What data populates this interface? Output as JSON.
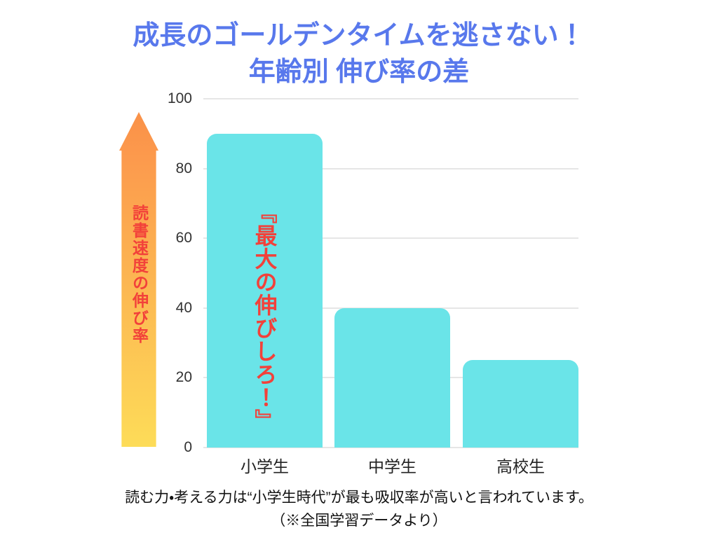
{
  "title": {
    "line1": "成長のゴールデンタイムを逃さない！",
    "line2": "年齢別 伸び率の差"
  },
  "chart_data": {
    "type": "bar",
    "title": "年齢別 伸び率の差",
    "categories": [
      "小学生",
      "中学生",
      "高校生"
    ],
    "values": [
      90,
      40,
      25
    ],
    "xlabel": "",
    "ylabel": "読書速度の伸び率",
    "ylim": [
      0,
      100
    ],
    "yticks": [
      0,
      20,
      40,
      60,
      80,
      100
    ],
    "grid": true,
    "legend": false,
    "bar_color": "#6AE4E8",
    "annotation": "『最大の伸びしろ！』"
  },
  "arrow": {
    "label": "読書速度の伸び率",
    "gradient_top": "#FA9148",
    "gradient_bottom": "#FDDC58"
  },
  "caption": {
    "line1": "読む力・考える力は“小学生時代”が最も吸収率が高いと言われています。",
    "line2": "（※全国学習データより）"
  },
  "colors": {
    "title_blue": "#5878EC",
    "bar_cyan": "#6AE4E8",
    "accent_red": "#F2413A",
    "grid_gray": "#E6E6E6"
  }
}
